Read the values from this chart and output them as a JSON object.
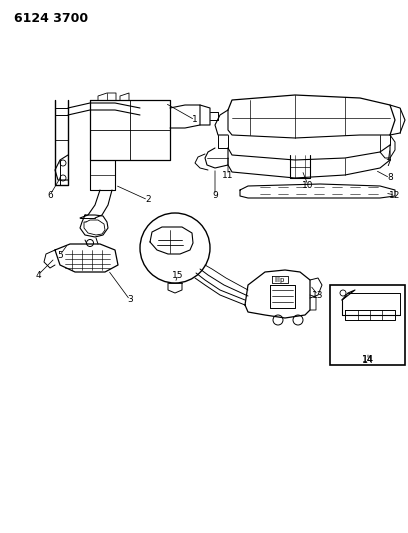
{
  "title": "6124 3700",
  "bg_color": "#ffffff",
  "line_color": "#000000",
  "fig_width": 4.08,
  "fig_height": 5.33,
  "dpi": 100
}
